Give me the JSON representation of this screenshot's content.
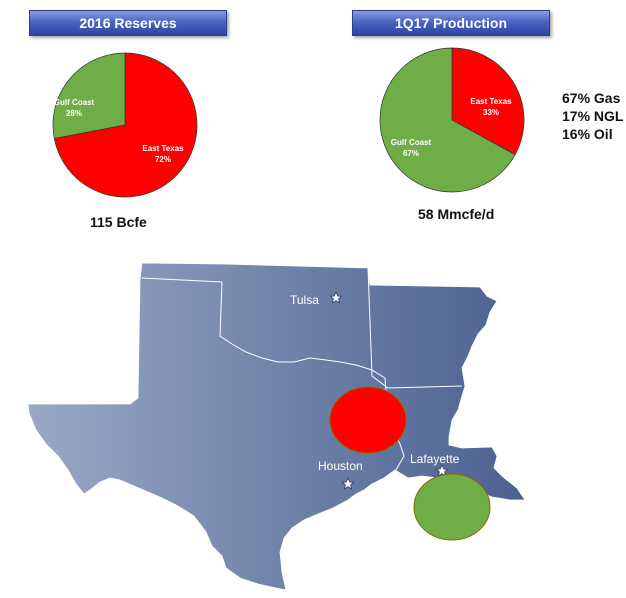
{
  "chart_data": [
    {
      "type": "pie",
      "title": "2016 Reserves",
      "slices": [
        {
          "label": "East Texas",
          "value": 72,
          "value_label": "72%",
          "color": "#ff0000"
        },
        {
          "label": "Gulf Coast",
          "value": 28,
          "value_label": "28%",
          "color": "#6fad47"
        }
      ],
      "caption": "115 Bcfe"
    },
    {
      "type": "pie",
      "title": "1Q17 Production",
      "slices": [
        {
          "label": "East Texas",
          "value": 33,
          "value_label": "33%",
          "color": "#ff0000"
        },
        {
          "label": "Gulf Coast",
          "value": 67,
          "value_label": "67%",
          "color": "#6fad47"
        }
      ],
      "caption": "58 Mmcfe/d",
      "mix": [
        "67% Gas",
        "17% NGL",
        "16% Oil"
      ]
    }
  ],
  "map": {
    "cities": [
      "Tulsa",
      "Houston",
      "Lafayette"
    ],
    "markers": [
      {
        "region": "East Texas",
        "color": "#ff0000"
      },
      {
        "region": "Gulf Coast",
        "color": "#6fad47"
      }
    ],
    "land_color": "#6b7fa6"
  }
}
